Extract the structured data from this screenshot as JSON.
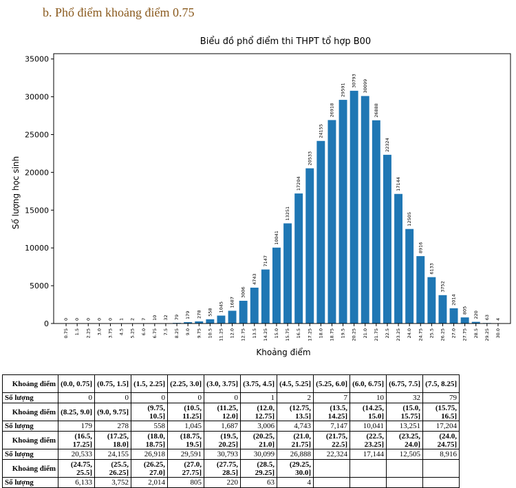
{
  "heading": "b. Phổ điểm khoảng điểm 0.75",
  "chart_data": {
    "type": "bar",
    "title": "Biểu đồ phổ điểm thi THPT tổ hợp B00",
    "xlabel": "Khoảng điểm",
    "ylabel": "Số lượng học sinh",
    "categories": [
      "0.75",
      "1.5",
      "2.25",
      "3.0",
      "3.75",
      "4.5",
      "5.25",
      "6.0",
      "6.75",
      "7.5",
      "8.25",
      "9.0",
      "9.75",
      "10.5",
      "11.25",
      "12.0",
      "12.75",
      "13.5",
      "14.25",
      "15.0",
      "15.75",
      "16.5",
      "17.25",
      "18.0",
      "18.75",
      "19.5",
      "20.25",
      "21.0",
      "21.75",
      "22.5",
      "23.25",
      "24.0",
      "24.75",
      "25.5",
      "26.25",
      "27.0",
      "27.75",
      "28.5",
      "29.25",
      "30.0"
    ],
    "values": [
      0,
      0,
      0,
      0,
      0,
      1,
      2,
      7,
      10,
      32,
      79,
      179,
      278,
      558,
      1045,
      1687,
      3006,
      4743,
      7147,
      10041,
      13251,
      17204,
      20533,
      24155,
      26918,
      29591,
      30793,
      30099,
      26888,
      22324,
      17144,
      12505,
      8916,
      6133,
      3752,
      2014,
      805,
      220,
      63,
      4
    ],
    "color": "#1f77b4",
    "ylim": [
      0,
      35700
    ],
    "yticks": [
      0,
      5000,
      10000,
      15000,
      20000,
      25000,
      30000,
      35000
    ]
  },
  "table": {
    "rows": [
      [
        "Khoảng điểm",
        "(0.0, 0.75]",
        "(0.75, 1.5]",
        "(1.5, 2.25]",
        "(2.25, 3.0]",
        "(3.0, 3.75]",
        "(3.75, 4.5]",
        "(4.5, 5.25]",
        "(5.25, 6.0]",
        "(6.0, 6.75]",
        "(6.75, 7.5]",
        "(7.5, 8.25]"
      ],
      [
        "Số lượng",
        "0",
        "0",
        "0",
        "0",
        "0",
        "1",
        "2",
        "7",
        "10",
        "32",
        "79"
      ],
      [
        "Khoảng điểm",
        "(8.25, 9.0]",
        "(9.0, 9.75]",
        "(9.75, 10.5]",
        "(10.5, 11.25]",
        "(11.25, 12.0]",
        "(12.0, 12.75]",
        "(12.75, 13.5]",
        "(13.5, 14.25]",
        "(14.25, 15.0]",
        "(15.0, 15.75]",
        "(15.75, 16.5]"
      ],
      [
        "Số lượng",
        "179",
        "278",
        "558",
        "1,045",
        "1,687",
        "3,006",
        "4,743",
        "7,147",
        "10,041",
        "13,251",
        "17,204"
      ],
      [
        "Khoảng điểm",
        "(16.5, 17.25]",
        "(17.25, 18.0]",
        "(18.0, 18.75]",
        "(18.75, 19.5]",
        "(19.5, 20.25]",
        "(20.25, 21.0]",
        "(21.0, 21.75]",
        "(21.75, 22.5]",
        "(22.5, 23.25]",
        "(23.25, 24.0]",
        "(24.0, 24.75]"
      ],
      [
        "Số lượng",
        "20,533",
        "24,155",
        "26,918",
        "29,591",
        "30,793",
        "30,099",
        "26,888",
        "22,324",
        "17,144",
        "12,505",
        "8,916"
      ],
      [
        "Khoảng điểm",
        "(24.75, 25.5]",
        "(25.5, 26.25]",
        "(26.25, 27.0]",
        "(27.0, 27.75]",
        "(27.75, 28.5]",
        "(28.5, 29.25]",
        "(29.25, 30.0]"
      ],
      [
        "Số lượng",
        "6,133",
        "3,752",
        "2,014",
        "805",
        "220",
        "63",
        "4"
      ]
    ]
  }
}
